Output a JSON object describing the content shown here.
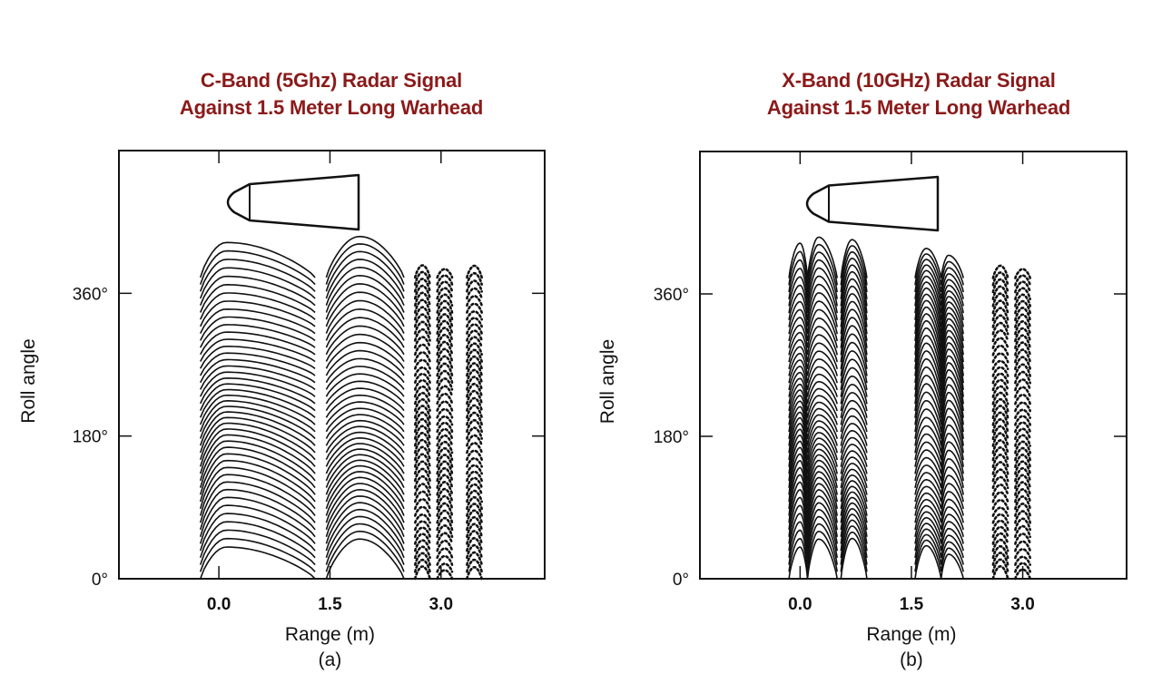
{
  "chart_data": [
    {
      "type": "line",
      "title_lines": [
        "C-Band (5Ghz) Radar Signal",
        "Against 1.5 Meter Long Warhead"
      ],
      "xlabel": "Range (m)",
      "ylabel": "Roll angle",
      "panel_label": "(a)",
      "x_ticks": [
        "0.0",
        "1.5",
        "3.0"
      ],
      "x_tick_values": [
        0.0,
        1.5,
        3.0
      ],
      "y_ticks": [
        "0°",
        "180°",
        "360°"
      ],
      "y_tick_values": [
        0,
        180,
        360
      ],
      "xlim": [
        -1.35,
        4.4
      ],
      "ylim": [
        0,
        540
      ],
      "roll_angle_traces": {
        "start": 0,
        "end": 380,
        "count": 44
      },
      "groups": [
        {
          "x_range": [
            -0.25,
            1.3
          ],
          "peak_x": 0.1,
          "style": "solid"
        },
        {
          "x_range": [
            1.45,
            2.5
          ],
          "peak_x": 1.9,
          "style": "solid"
        },
        {
          "x_range": [
            2.65,
            2.85
          ],
          "peak_x": 2.75,
          "style": "dotted"
        },
        {
          "x_range": [
            2.95,
            3.15
          ],
          "peak_x": 3.05,
          "style": "dotted"
        },
        {
          "x_range": [
            3.35,
            3.55
          ],
          "peak_x": 3.45,
          "style": "dotted"
        }
      ]
    },
    {
      "type": "line",
      "title_lines": [
        "X-Band (10GHz) Radar Signal",
        "Against 1.5 Meter Long Warhead"
      ],
      "xlabel": "Range (m)",
      "ylabel": "Roll angle",
      "panel_label": "(b)",
      "x_ticks": [
        "0.0",
        "1.5",
        "3.0"
      ],
      "x_tick_values": [
        0.0,
        1.5,
        3.0
      ],
      "y_ticks": [
        "0°",
        "180°",
        "360°"
      ],
      "y_tick_values": [
        0,
        180,
        360
      ],
      "xlim": [
        -1.35,
        4.4
      ],
      "ylim": [
        0,
        540
      ],
      "roll_angle_traces": {
        "start": 0,
        "end": 380,
        "count": 44
      },
      "groups": [
        {
          "x_range": [
            -0.15,
            0.1
          ],
          "peak_x": 0.0,
          "style": "solid"
        },
        {
          "x_range": [
            0.1,
            0.5
          ],
          "peak_x": 0.25,
          "style": "solid"
        },
        {
          "x_range": [
            0.55,
            0.9
          ],
          "peak_x": 0.7,
          "style": "solid"
        },
        {
          "x_range": [
            1.55,
            1.9
          ],
          "peak_x": 1.7,
          "style": "solid"
        },
        {
          "x_range": [
            1.9,
            2.2
          ],
          "peak_x": 2.0,
          "style": "solid"
        },
        {
          "x_range": [
            2.6,
            2.8
          ],
          "peak_x": 2.7,
          "style": "dotted"
        },
        {
          "x_range": [
            2.9,
            3.1
          ],
          "peak_x": 3.0,
          "style": "dotted"
        }
      ]
    }
  ]
}
